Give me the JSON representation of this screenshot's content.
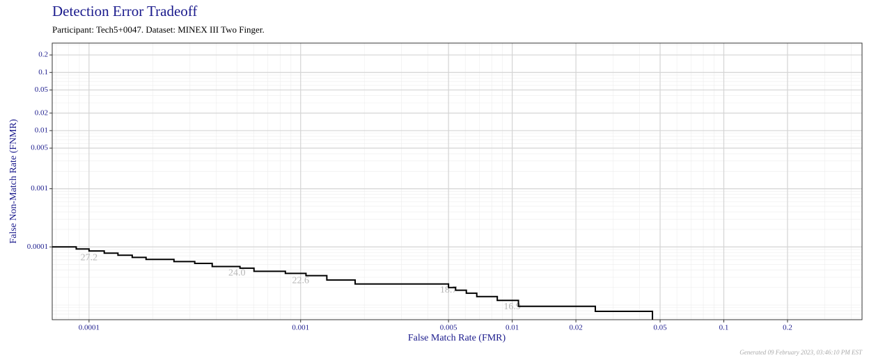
{
  "chart_data": {
    "type": "line",
    "title": "Detection Error Tradeoff",
    "subtitle": "Participant: Tech5+0047. Dataset: MINEX III Two Finger.",
    "x_label": "False Match Rate (FMR)",
    "y_label": "False Non-Match Rate (FNMR)",
    "footer": "Generated 09 February 2023, 03:46:10 PM EST",
    "x_scale": "log",
    "y_scale": "log",
    "grid": true,
    "xlim": [
      6.7e-05,
      0.45
    ],
    "ylim": [
      5.6e-06,
      0.32
    ],
    "xticks": [
      0.0001,
      0.001,
      0.005,
      0.01,
      0.02,
      0.05,
      0.1,
      0.2
    ],
    "yticks": [
      0.0001,
      0.001,
      0.005,
      0.01,
      0.02,
      0.05,
      0.1,
      0.2
    ],
    "series": [
      {
        "color": "#000000",
        "x": [
          6.7e-05,
          8.7e-05,
          8.7e-05,
          0.0001,
          0.0001,
          0.000118,
          0.000118,
          0.000137,
          0.000137,
          0.00016,
          0.00016,
          0.000186,
          0.000186,
          0.000252,
          0.000252,
          0.000316,
          0.000316,
          0.000382,
          0.000382,
          0.000517,
          0.000517,
          0.000602,
          0.000602,
          0.000847,
          0.000847,
          0.00106,
          0.00106,
          0.00133,
          0.00133,
          0.00181,
          0.00181,
          0.005,
          0.005,
          0.0054,
          0.0054,
          0.00607,
          0.00607,
          0.0068,
          0.0068,
          0.0085,
          0.0085,
          0.0107,
          0.0107,
          0.0247,
          0.0247,
          0.046,
          0.046
        ],
        "y": [
          0.0001,
          0.0001,
          9.2e-05,
          9.2e-05,
          8.5e-05,
          8.5e-05,
          7.8e-05,
          7.8e-05,
          7.2e-05,
          7.2e-05,
          6.6e-05,
          6.6e-05,
          6.1e-05,
          6.1e-05,
          5.6e-05,
          5.6e-05,
          5.2e-05,
          5.2e-05,
          4.6e-05,
          4.6e-05,
          4.3e-05,
          4.3e-05,
          3.8e-05,
          3.8e-05,
          3.5e-05,
          3.5e-05,
          3.2e-05,
          3.2e-05,
          2.7e-05,
          2.7e-05,
          2.3e-05,
          2.3e-05,
          2e-05,
          2e-05,
          1.8e-05,
          1.8e-05,
          1.6e-05,
          1.6e-05,
          1.4e-05,
          1.4e-05,
          1.2e-05,
          1.2e-05,
          9.5e-06,
          9.5e-06,
          7.8e-06,
          7.8e-06,
          5.6e-06
        ]
      }
    ],
    "annotations": [
      {
        "text": "27.2",
        "x": 0.0001,
        "y": 6.45e-05
      },
      {
        "text": "24.0",
        "x": 0.0005,
        "y": 3.5e-05
      },
      {
        "text": "22.6",
        "x": 0.001,
        "y": 2.6e-05
      },
      {
        "text": "18.7",
        "x": 0.005,
        "y": 1.78e-05
      },
      {
        "text": "16.9",
        "x": 0.01,
        "y": 9.2e-06
      }
    ]
  }
}
